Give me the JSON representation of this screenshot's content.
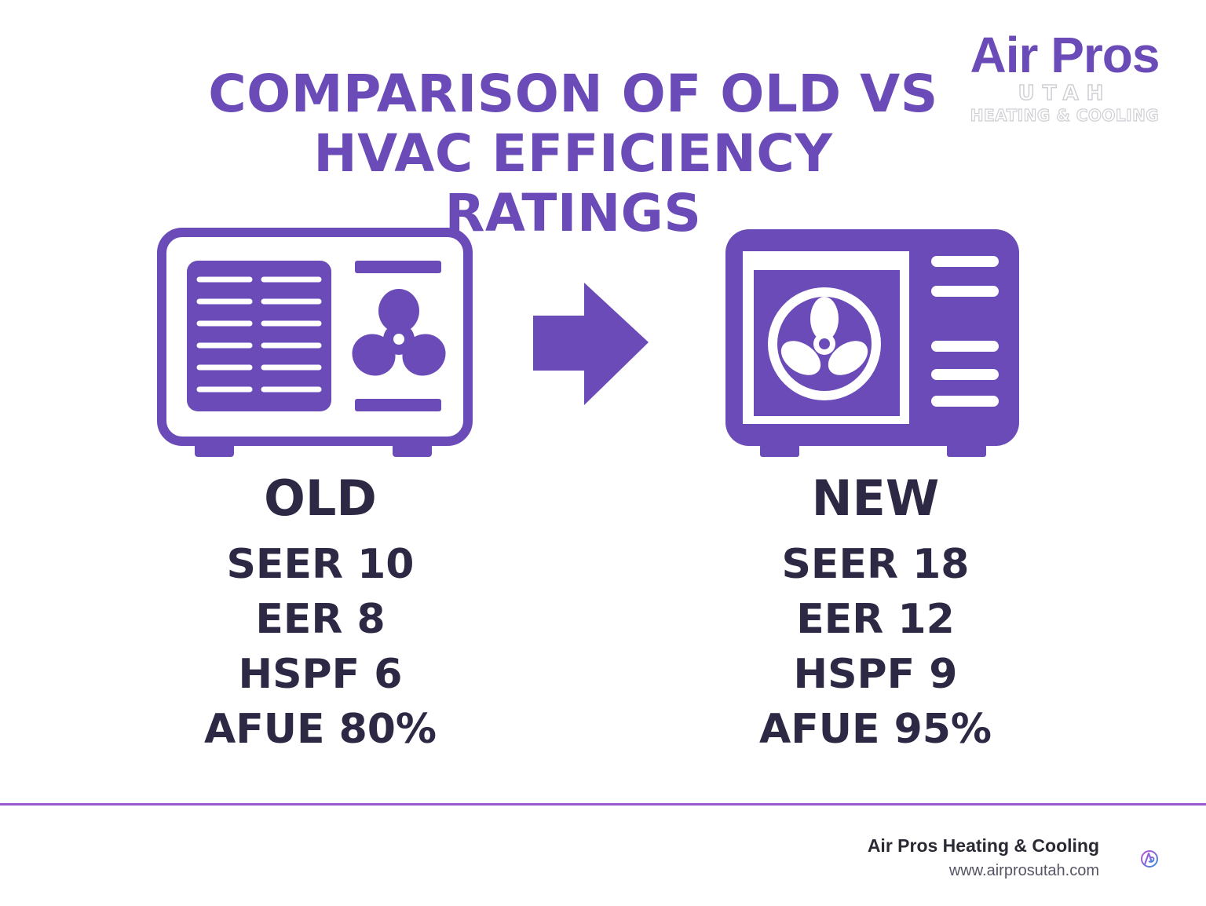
{
  "title": {
    "line1": "COMPARISON OF OLD VS",
    "line2": "HVAC EFFICIENCY RATINGS"
  },
  "logo": {
    "main": "Air Pros",
    "sub": "UTAH",
    "tagline": "HEATING & COOLING"
  },
  "old_unit": {
    "label": "OLD",
    "metrics": [
      "SEER 10",
      "EER 8",
      "HSPF 6",
      "AFUE 80%"
    ],
    "icon": "air-conditioner-old-icon"
  },
  "new_unit": {
    "label": "NEW",
    "metrics": [
      "SEER 18",
      "EER 12",
      "HSPF 9",
      "AFUE 95%"
    ],
    "icon": "air-conditioner-new-icon"
  },
  "arrow_icon": "right-arrow-icon",
  "footer": {
    "company": "Air Pros Heating & Cooling",
    "url": "www.airprosutah.com",
    "icon": "air-pros-badge-icon"
  },
  "colors": {
    "accent": "#6a4bb8",
    "text_dark": "#2d2844",
    "divider": "#9b59d0"
  }
}
